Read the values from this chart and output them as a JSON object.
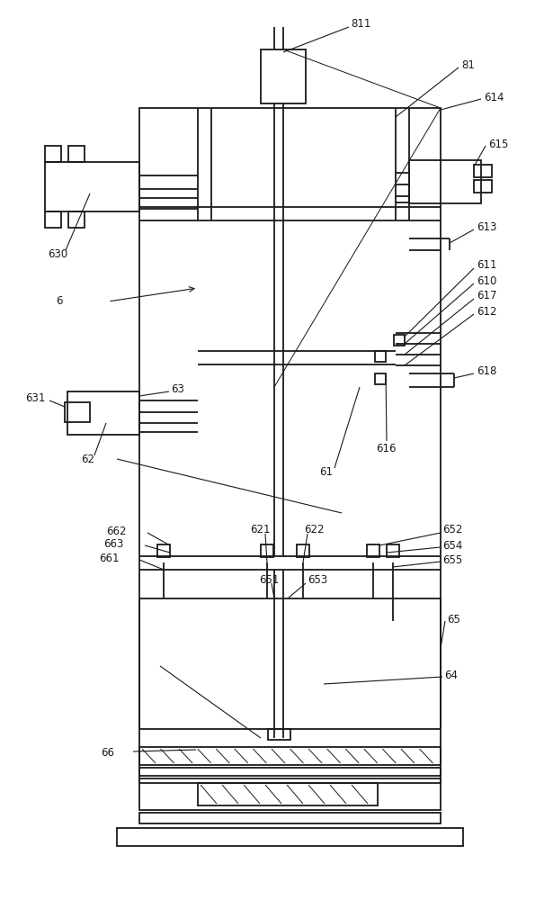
{
  "fig_width": 6.15,
  "fig_height": 10.0,
  "dpi": 100,
  "bg_color": "#ffffff",
  "line_color": "#1a1a1a",
  "line_width": 1.3,
  "annotation_lw": 0.8,
  "font_size": 8.5
}
